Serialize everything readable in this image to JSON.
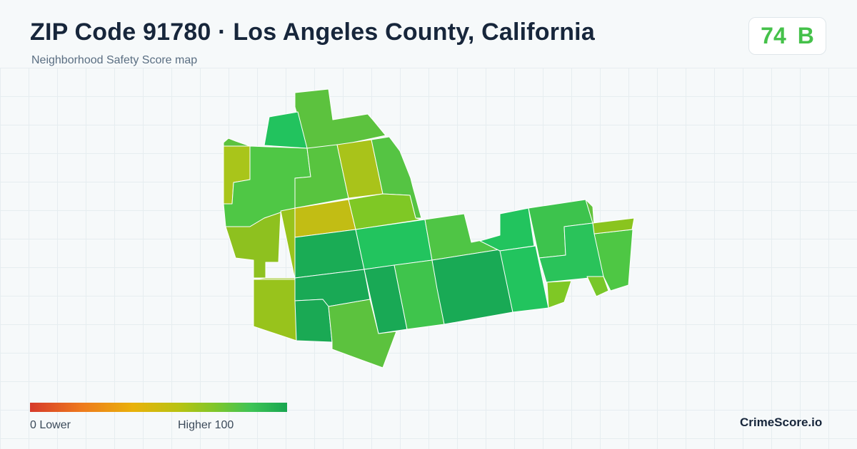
{
  "header": {
    "title": "ZIP Code 91780 · Los Angeles County, California",
    "subtitle": "Neighborhood Safety Score map"
  },
  "score_badge": {
    "score": "74",
    "grade": "B",
    "color": "#45c14a"
  },
  "legend": {
    "low_label": "0  Lower",
    "high_label": "Higher  100",
    "gradient_colors": [
      "#d63a2a",
      "#ee7a1d",
      "#e9b10a",
      "#b8c312",
      "#7fc62a",
      "#3ec456",
      "#18a650"
    ]
  },
  "brand": "CrimeScore.io",
  "map": {
    "region_colors": {
      "north-top": "#5cc23e",
      "north-left-green": "#22c35e",
      "north-tab": "#5cc23e",
      "nw-olive": "#a9c51a",
      "nw-left": "#4fc745",
      "center-north": "#58c43f",
      "center-olive": "#a9c31a",
      "ne-strip": "#55c443",
      "mustard": "#c2bd14",
      "center-lime": "#7fc825",
      "sw-west": "#8ec11f",
      "sw-olive": "#98c31c",
      "center-dark": "#1aac55",
      "center-bright": "#22c45e",
      "east-mid": "#4fc545",
      "sw-dark-1": "#19a955",
      "sw-dark-2": "#1aa954",
      "south-green": "#5cc23e",
      "south-dark": "#19a955",
      "south-mid": "#3fc44c",
      "se-dark": "#19aa55",
      "east-bright": "#22c45e",
      "east-green": "#3dc34d",
      "far-east-1": "#62c33c",
      "far-east-2": "#2ac35a",
      "far-east-3": "#4ec744",
      "far-east-olive": "#8ac41e",
      "small-south": "#7fc825",
      "small-se": "#78c729"
    }
  }
}
